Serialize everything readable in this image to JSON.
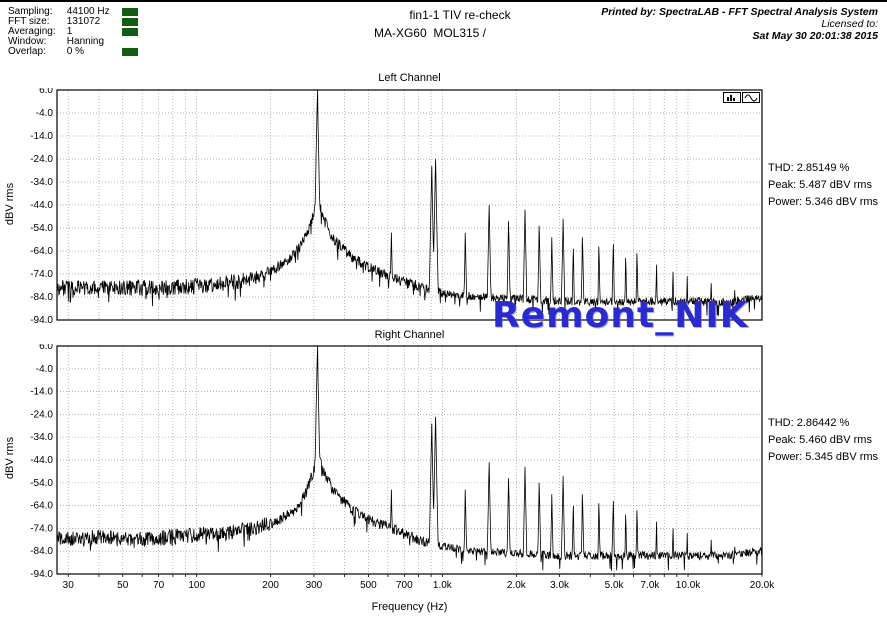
{
  "header": {
    "title": "fin1-1 TIV re-check",
    "subtitle": "MA-XG60  MOL315 /"
  },
  "print_info": {
    "line1": "Printed by: SpectraLAB - FFT Spectral Analysis System",
    "line2": "Licensed to:",
    "line3": "Sat May 30 20:01:38 2015"
  },
  "settings": {
    "rows": [
      {
        "label": "Sampling:",
        "value": "44100 Hz"
      },
      {
        "label": "FFT size:",
        "value": "131072"
      },
      {
        "label": "Averaging:",
        "value": "1"
      },
      {
        "label": "Window:",
        "value": "Hanning"
      },
      {
        "label": "Overlap:",
        "value": "0 %"
      }
    ]
  },
  "watermark": {
    "text": "Remont_NIK",
    "color": "#2a2ace"
  },
  "colors": {
    "marker_green": "#145c14",
    "trace": "#000000",
    "grid": "#999999"
  },
  "icons": {
    "toolbar": [
      "spectrum-bars-icon",
      "sine-wave-icon"
    ]
  },
  "chart_layout": {
    "xscale": "log",
    "xlim": [
      27,
      20000
    ],
    "ylim": [
      -94,
      6
    ],
    "grid": "dotted",
    "xlabel": "Frequency (Hz)",
    "xticks": [
      [
        30,
        "30"
      ],
      [
        50,
        "50"
      ],
      [
        70,
        "70"
      ],
      [
        100,
        "100"
      ],
      [
        200,
        "200"
      ],
      [
        300,
        "300"
      ],
      [
        500,
        "500"
      ],
      [
        700,
        "700"
      ],
      [
        1000,
        "1.0k"
      ],
      [
        2000,
        "2.0k"
      ],
      [
        3000,
        "3.0k"
      ],
      [
        5000,
        "5.0k"
      ],
      [
        7000,
        "7.0k"
      ],
      [
        10000,
        "10.0k"
      ],
      [
        20000,
        "20.0k"
      ]
    ],
    "yticks": [
      [
        6,
        "6.0"
      ],
      [
        -4,
        "-4.0"
      ],
      [
        -14,
        "-14.0"
      ],
      [
        -24,
        "-24.0"
      ],
      [
        -34,
        "-34.0"
      ],
      [
        -44,
        "-44.0"
      ],
      [
        -54,
        "-54.0"
      ],
      [
        -64,
        "-64.0"
      ],
      [
        -74,
        "-74.0"
      ],
      [
        -84,
        "-84.0"
      ],
      [
        -94,
        "-94.0"
      ]
    ]
  },
  "chart_data": [
    {
      "name": "Left Channel",
      "type": "line",
      "ylabel": "dBV rms",
      "stats": {
        "thd": "THD: 2.85149 %",
        "peak": "Peak: 5.487 dBV rms",
        "power": "Power: 5.346 dBV rms"
      },
      "fundamental_hz": 310,
      "floor": [
        [
          27,
          -80
        ],
        [
          45,
          -80
        ],
        [
          70,
          -80
        ],
        [
          110,
          -79
        ],
        [
          150,
          -77
        ],
        [
          190,
          -74
        ],
        [
          230,
          -69
        ],
        [
          260,
          -63
        ],
        [
          285,
          -55
        ],
        [
          300,
          -47
        ],
        [
          310,
          -40
        ],
        [
          325,
          -49
        ],
        [
          355,
          -58
        ],
        [
          410,
          -65
        ],
        [
          480,
          -70
        ],
        [
          580,
          -74
        ],
        [
          720,
          -78
        ],
        [
          900,
          -81
        ],
        [
          1100,
          -83
        ],
        [
          1500,
          -84
        ],
        [
          2200,
          -85
        ],
        [
          3500,
          -86
        ],
        [
          6000,
          -86
        ],
        [
          10000,
          -86
        ],
        [
          15000,
          -86
        ],
        [
          20000,
          -84
        ]
      ],
      "peaks": [
        [
          310,
          6
        ],
        [
          620,
          -56
        ],
        [
          905,
          -27
        ],
        [
          938,
          -24
        ],
        [
          1240,
          -56
        ],
        [
          1550,
          -44
        ],
        [
          1860,
          -51
        ],
        [
          2170,
          -46
        ],
        [
          2480,
          -53
        ],
        [
          2790,
          -58
        ],
        [
          3100,
          -50
        ],
        [
          3410,
          -63
        ],
        [
          3720,
          -58
        ],
        [
          4340,
          -62
        ],
        [
          4960,
          -61
        ],
        [
          5580,
          -67
        ],
        [
          6200,
          -65
        ],
        [
          7440,
          -70
        ],
        [
          8680,
          -73
        ],
        [
          9920,
          -75
        ],
        [
          12400,
          -78
        ],
        [
          15500,
          -81
        ]
      ],
      "seed": 3
    },
    {
      "name": "Right Channel",
      "type": "line",
      "ylabel": "dBV rms",
      "stats": {
        "thd": "THD: 2.86442 %",
        "peak": "Peak: 5.460 dBV rms",
        "power": "Power: 5.345 dBV rms"
      },
      "fundamental_hz": 310,
      "floor": [
        [
          27,
          -79
        ],
        [
          40,
          -78
        ],
        [
          60,
          -79
        ],
        [
          90,
          -77
        ],
        [
          130,
          -76
        ],
        [
          170,
          -74
        ],
        [
          210,
          -71
        ],
        [
          250,
          -66
        ],
        [
          280,
          -58
        ],
        [
          300,
          -48
        ],
        [
          310,
          -41
        ],
        [
          330,
          -50
        ],
        [
          370,
          -59
        ],
        [
          430,
          -66
        ],
        [
          520,
          -71
        ],
        [
          650,
          -75
        ],
        [
          800,
          -79
        ],
        [
          1000,
          -82
        ],
        [
          1400,
          -84
        ],
        [
          2000,
          -85
        ],
        [
          3000,
          -86
        ],
        [
          5000,
          -86
        ],
        [
          9000,
          -86
        ],
        [
          14000,
          -86
        ],
        [
          20000,
          -84
        ]
      ],
      "peaks": [
        [
          310,
          6
        ],
        [
          620,
          -57
        ],
        [
          905,
          -28
        ],
        [
          938,
          -25
        ],
        [
          1240,
          -57
        ],
        [
          1550,
          -45
        ],
        [
          1860,
          -52
        ],
        [
          2170,
          -47
        ],
        [
          2480,
          -54
        ],
        [
          2790,
          -59
        ],
        [
          3100,
          -51
        ],
        [
          3410,
          -64
        ],
        [
          3720,
          -59
        ],
        [
          4340,
          -63
        ],
        [
          4960,
          -62
        ],
        [
          5580,
          -68
        ],
        [
          6200,
          -66
        ],
        [
          7440,
          -71
        ],
        [
          8680,
          -74
        ],
        [
          9920,
          -76
        ],
        [
          12400,
          -79
        ],
        [
          15500,
          -82
        ]
      ],
      "seed": 7
    }
  ]
}
